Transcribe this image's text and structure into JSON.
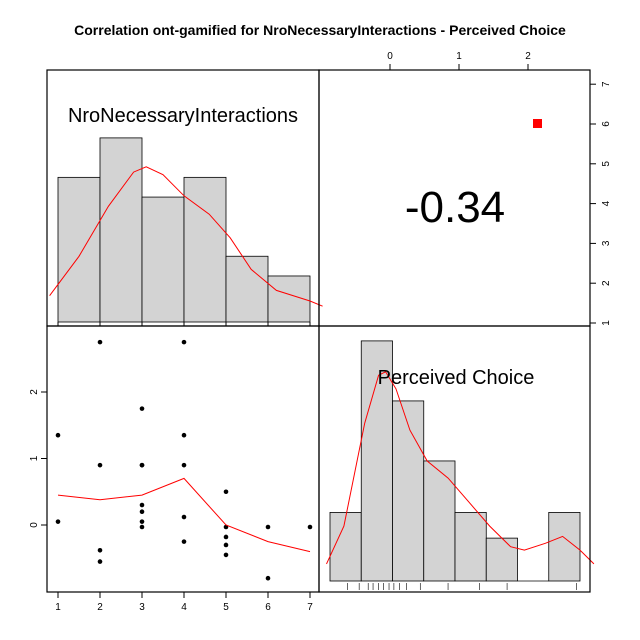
{
  "chart_data": {
    "type": "scatter",
    "title": "Correlation ont-gamified for NroNecessaryInteractions - Perceived Choice",
    "variables": [
      "NroNecessaryInteractions",
      "Perceived Choice"
    ],
    "correlation": {
      "label": "-0.34",
      "significance_marker_color": "#ff0000"
    },
    "histogram_x": {
      "variable": "NroNecessaryInteractions",
      "bins": [
        [
          1,
          2
        ],
        [
          2,
          3
        ],
        [
          3,
          4
        ],
        [
          4,
          5
        ],
        [
          5,
          6
        ],
        [
          6,
          7
        ]
      ],
      "counts": [
        5.5,
        7,
        4.75,
        5.5,
        2.5,
        1.75
      ],
      "density_curve": [
        [
          0.8,
          1.0
        ],
        [
          1.5,
          2.5
        ],
        [
          2.2,
          4.4
        ],
        [
          2.8,
          5.7
        ],
        [
          3.1,
          5.9
        ],
        [
          3.5,
          5.6
        ],
        [
          4.0,
          4.8
        ],
        [
          4.6,
          4.1
        ],
        [
          5.1,
          3.2
        ],
        [
          5.6,
          2.0
        ],
        [
          6.2,
          1.2
        ],
        [
          7.0,
          0.8
        ],
        [
          7.3,
          0.6
        ]
      ],
      "tick_labels": [
        "1",
        "2",
        "3",
        "4",
        "5",
        "6",
        "7"
      ],
      "ticks": [
        1,
        2,
        3,
        4,
        5,
        6,
        7
      ]
    },
    "histogram_y": {
      "variable": "Perceived Choice",
      "bins": [
        [
          -0.8,
          -0.35
        ],
        [
          -0.35,
          0.1
        ],
        [
          0.1,
          0.55
        ],
        [
          0.55,
          1.0
        ],
        [
          1.0,
          1.45
        ],
        [
          1.45,
          1.9
        ],
        [
          1.9,
          2.35
        ],
        [
          2.35,
          2.8
        ]
      ],
      "counts": [
        2,
        7,
        5.25,
        3.5,
        2,
        1.25,
        0,
        2
      ],
      "density_curve": [
        [
          -0.85,
          0.5
        ],
        [
          -0.6,
          1.6
        ],
        [
          -0.3,
          4.6
        ],
        [
          -0.1,
          6.0
        ],
        [
          0.0,
          6.1
        ],
        [
          0.15,
          5.6
        ],
        [
          0.35,
          4.4
        ],
        [
          0.6,
          3.5
        ],
        [
          0.9,
          3.0
        ],
        [
          1.2,
          2.3
        ],
        [
          1.5,
          1.6
        ],
        [
          1.8,
          1.0
        ],
        [
          2.0,
          0.9
        ],
        [
          2.3,
          1.1
        ],
        [
          2.55,
          1.3
        ],
        [
          2.8,
          0.9
        ],
        [
          3.0,
          0.5
        ]
      ],
      "rug": [
        -0.55,
        -0.38,
        -0.25,
        -0.18,
        -0.1,
        -0.03,
        0.05,
        0.12,
        0.2,
        0.3,
        0.5,
        0.9,
        1.35,
        1.75,
        2.75
      ]
    },
    "scatter": {
      "x": [
        1,
        1,
        2,
        2,
        2,
        2,
        3,
        3,
        3,
        3,
        3,
        3,
        3,
        4,
        4,
        4,
        4,
        4,
        5,
        5,
        5,
        5,
        5,
        6,
        6,
        7
      ],
      "y": [
        1.35,
        0.05,
        2.75,
        0.9,
        -0.38,
        -0.55,
        1.75,
        0.9,
        0.3,
        0.2,
        0.05,
        -0.03,
        0.9,
        2.75,
        1.35,
        0.9,
        0.12,
        -0.25,
        0.5,
        -0.03,
        -0.18,
        -0.3,
        -0.45,
        -0.03,
        -0.8,
        -0.03
      ],
      "smooth_x": [
        1,
        2,
        3,
        4,
        5,
        6,
        7
      ],
      "smooth_y": [
        0.45,
        0.38,
        0.45,
        0.7,
        0.0,
        -0.25,
        -0.4
      ],
      "x_ticks": [
        1,
        2,
        3,
        4,
        5,
        6,
        7
      ],
      "x_tick_labels": [
        "1",
        "2",
        "3",
        "4",
        "5",
        "6",
        "7"
      ],
      "y_ticks": [
        0,
        1,
        2
      ],
      "y_tick_labels": [
        "0",
        "1",
        "2"
      ],
      "xlim": [
        0.8,
        7.2
      ],
      "ylim": [
        -0.85,
        2.85
      ]
    },
    "top_axis": {
      "ticks": [
        0,
        1,
        2
      ],
      "tick_labels": [
        "0",
        "1",
        "2"
      ]
    },
    "right_axis": {
      "ticks": [
        1,
        2,
        3,
        4,
        5,
        6,
        7
      ],
      "tick_labels": [
        "1",
        "2",
        "3",
        "4",
        "5",
        "6",
        "7"
      ]
    },
    "colors": {
      "bar_fill": "#d3d3d3",
      "curve": "#ff0000",
      "points": "#000000"
    },
    "grid": false,
    "legend": "none"
  }
}
